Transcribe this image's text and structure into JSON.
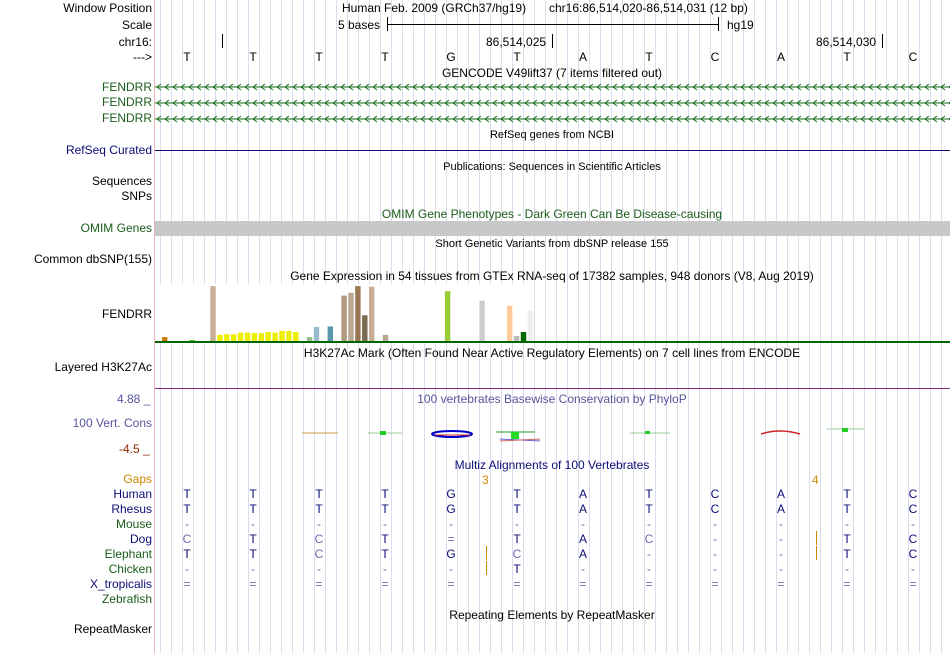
{
  "header": {
    "window_position_label": "Window Position",
    "scale_label": "Scale",
    "chrom_label": "chr16:",
    "arrow_label": "--->",
    "assembly": "Human Feb. 2009 (GRCh37/hg19)",
    "position": "chr16:86,514,020-86,514,031 (12 bp)",
    "scale_text": "5 bases",
    "db": "hg19",
    "coord_1": "86,514,025",
    "coord_2": "86,514,030"
  },
  "bases": [
    "T",
    "T",
    "T",
    "T",
    "G",
    "T",
    "A",
    "T",
    "C",
    "A",
    "T",
    "C"
  ],
  "tracks": {
    "gencode": {
      "title": "GENCODE V49lift37 (7 items filtered out)",
      "items": [
        "FENDRR",
        "FENDRR",
        "FENDRR"
      ]
    },
    "refseq": {
      "title": "RefSeq genes from NCBI",
      "label": "RefSeq Curated"
    },
    "publications": {
      "title": "Publications: Sequences in Scientific Articles",
      "label_1": "Sequences",
      "label_2": "SNPs"
    },
    "omim": {
      "title": "OMIM Gene Phenotypes - Dark Green Can Be Disease-causing",
      "label": "OMIM Genes"
    },
    "dbsnp": {
      "title": "Short Genetic Variants from dbSNP release 155",
      "label": "Common dbSNP(155)"
    },
    "gtex": {
      "title": "Gene Expression in 54 tissues from GTEx RNA-seq of 17382 samples, 948 donors (V8, Aug 2019)",
      "label": "FENDRR",
      "bars": [
        {
          "v": 0.07,
          "color": "#cc7a00"
        },
        {
          "v": 0.0,
          "color": "#ffaa00"
        },
        {
          "v": 0.0,
          "color": "#ffaa00"
        },
        {
          "v": 0.0,
          "color": "#ff6600"
        },
        {
          "v": 0.01,
          "color": "#33cc33"
        },
        {
          "v": 0.0,
          "color": "#66cc66"
        },
        {
          "v": 0.0,
          "color": "#ff66aa"
        },
        {
          "v": 0.98,
          "color": "#c9ad94"
        },
        {
          "v": 0.11,
          "color": "#eeee00"
        },
        {
          "v": 0.12,
          "color": "#eeee00"
        },
        {
          "v": 0.12,
          "color": "#eeee00"
        },
        {
          "v": 0.15,
          "color": "#eeee00"
        },
        {
          "v": 0.15,
          "color": "#eeee00"
        },
        {
          "v": 0.14,
          "color": "#eeee00"
        },
        {
          "v": 0.14,
          "color": "#eeee00"
        },
        {
          "v": 0.16,
          "color": "#eeee00"
        },
        {
          "v": 0.15,
          "color": "#eeee00"
        },
        {
          "v": 0.18,
          "color": "#eeee00"
        },
        {
          "v": 0.18,
          "color": "#eeee00"
        },
        {
          "v": 0.16,
          "color": "#eeee00"
        },
        {
          "v": 0.0,
          "color": "#eeee00"
        },
        {
          "v": 0.07,
          "color": "#99bb88"
        },
        {
          "v": 0.25,
          "color": "#99bbcc"
        },
        {
          "v": 0.0,
          "color": "#aaaaaa"
        },
        {
          "v": 0.26,
          "color": "#5599aa"
        },
        {
          "v": 0.0,
          "color": "#ccccff"
        },
        {
          "v": 0.81,
          "color": "#b09a80"
        },
        {
          "v": 0.86,
          "color": "#bba690"
        },
        {
          "v": 0.98,
          "color": "#997755"
        },
        {
          "v": 0.46,
          "color": "#7a6a50"
        },
        {
          "v": 0.97,
          "color": "#c9ad94"
        },
        {
          "v": 0.0,
          "color": "#aaaaaa"
        },
        {
          "v": 0.11,
          "color": "#bba690"
        },
        {
          "v": 0.0,
          "color": "#cccccc"
        },
        {
          "v": 0.0,
          "color": "#cccccc"
        },
        {
          "v": 0.0,
          "color": "#dddddd"
        },
        {
          "v": 0.0,
          "color": "#dddddd"
        },
        {
          "v": 0.0,
          "color": "#dddddd"
        },
        {
          "v": 0.0,
          "color": "#dddddd"
        },
        {
          "v": 0.0,
          "color": "#dddddd"
        },
        {
          "v": 0.0,
          "color": "#aaff66"
        },
        {
          "v": 0.89,
          "color": "#99cc33"
        },
        {
          "v": 0.0,
          "color": "#dddddd"
        },
        {
          "v": 0.0,
          "color": "#dddddd"
        },
        {
          "v": 0.0,
          "color": "#dddddd"
        },
        {
          "v": 0.0,
          "color": "#dddddd"
        },
        {
          "v": 0.72,
          "color": "#cccccc"
        },
        {
          "v": 0.0,
          "color": "#dddddd"
        },
        {
          "v": 0.0,
          "color": "#dddddd"
        },
        {
          "v": 0.0,
          "color": "#cccccc"
        },
        {
          "v": 0.63,
          "color": "#ffcc99"
        },
        {
          "v": 0.09,
          "color": "#bbbbbb"
        },
        {
          "v": 0.16,
          "color": "#006600"
        },
        {
          "v": 0.54,
          "color": "#eeeeee"
        }
      ]
    },
    "h3k27ac": {
      "title": "H3K27Ac Mark (Often Found Near Active Regulatory Elements) on 7 cell lines from ENCODE",
      "label": "Layered H3K27Ac"
    },
    "phylop": {
      "title": "100 vertebrates Basewise Conservation by PhyloP",
      "label": "100 Vert. Cons",
      "max": "4.88 _",
      "min": "-4.5 _"
    },
    "multiz": {
      "title": "Multiz Alignments of 100 Vertebrates",
      "gaps_label": "Gaps",
      "gap_counts": [
        "3",
        "4"
      ],
      "species": [
        {
          "name": "Human",
          "bases": [
            "T",
            "T",
            "T",
            "T",
            "G",
            "T",
            "A",
            "T",
            "C",
            "A",
            "T",
            "C"
          ]
        },
        {
          "name": "Rhesus",
          "bases": [
            "T",
            "T",
            "T",
            "T",
            "G",
            "T",
            "A",
            "T",
            "C",
            "A",
            "T",
            "C"
          ]
        },
        {
          "name": "Mouse",
          "bases": [
            "-",
            "-",
            "-",
            "-",
            "-",
            "-",
            "-",
            "-",
            "-",
            "-",
            "-",
            "-"
          ]
        },
        {
          "name": "Dog",
          "bases": [
            "C",
            "T",
            "C",
            "T",
            "=",
            "T",
            "A",
            "C",
            "-",
            "-",
            "T",
            "C"
          ]
        },
        {
          "name": "Elephant",
          "bases": [
            "T",
            "T",
            "C",
            "T",
            "G",
            "C",
            "A",
            "-",
            "-",
            "-",
            "T",
            "C"
          ]
        },
        {
          "name": "Chicken",
          "bases": [
            "-",
            "-",
            "-",
            "-",
            "-",
            "T",
            "-",
            "-",
            "-",
            "-",
            "-",
            "-"
          ]
        },
        {
          "name": "X_tropicalis",
          "bases": [
            "=",
            "=",
            "=",
            "=",
            "=",
            "=",
            "=",
            "=",
            "=",
            "=",
            "=",
            "="
          ]
        },
        {
          "name": "Zebrafish",
          "bases": [
            "",
            "",
            "",
            "",
            "",
            "",
            "",
            "",
            "",
            "",
            "",
            ""
          ]
        }
      ]
    },
    "repeatmasker": {
      "title": "Repeating Elements by RepeatMasker",
      "label": "RepeatMasker"
    }
  }
}
